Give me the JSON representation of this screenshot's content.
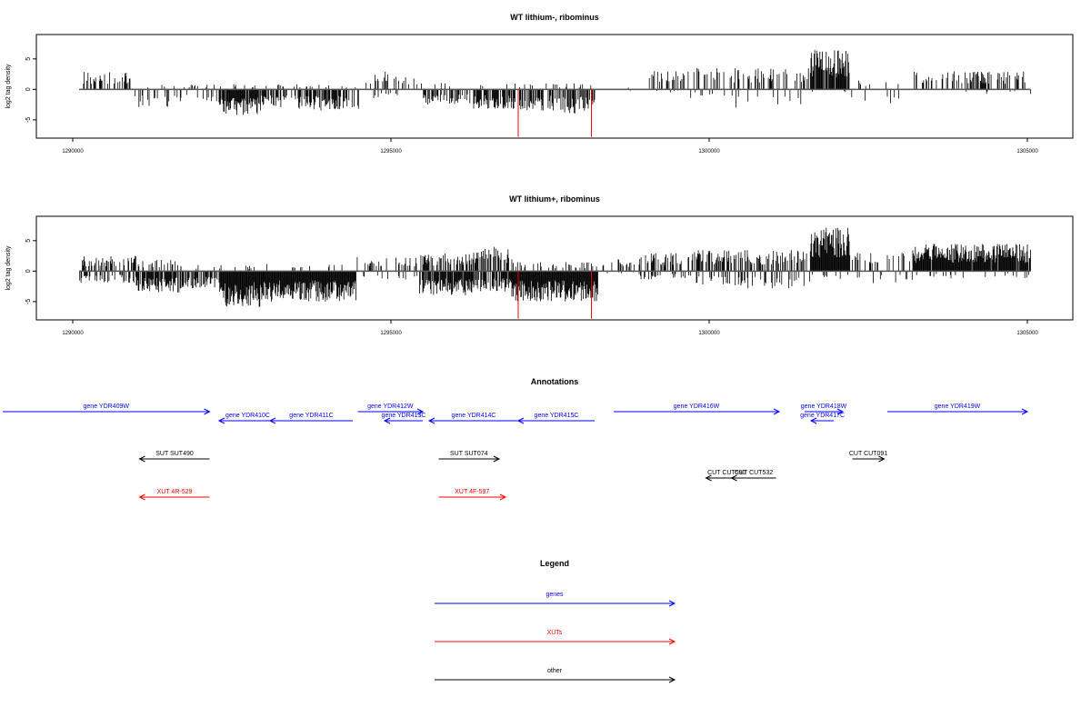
{
  "colors": {
    "gene": "#0000ff",
    "xut": "#ff0000",
    "other": "#000000",
    "signal": "#000000",
    "highlight": "#ff0000"
  },
  "chart_data": [
    {
      "type": "bar",
      "title": "WT lithium-, ribominus",
      "ylabel": "log2 tag density",
      "xlim": [
        1290000,
        1305000
      ],
      "ylim": [
        -8,
        9
      ],
      "x_ticks": [
        1290000,
        1295000,
        1300000,
        1305000
      ],
      "x_tick_labels": [
        "1290000",
        "1295000",
        "1300000",
        "1305000"
      ],
      "y_ticks": [
        -5,
        0,
        5
      ],
      "y_tick_labels": [
        "-5",
        "0",
        "5"
      ],
      "segments": [
        {
          "x0": 1290100,
          "x1": 1290900,
          "pos": 3.0,
          "neg": 0,
          "p": 0.35,
          "pn": 0
        },
        {
          "x0": 1290900,
          "x1": 1291700,
          "pos": 1.0,
          "neg": 3.0,
          "p": 0.12,
          "pn": 0.2
        },
        {
          "x0": 1291700,
          "x1": 1292300,
          "pos": 0.8,
          "neg": 2.5,
          "p": 0.1,
          "pn": 0.2
        },
        {
          "x0": 1292300,
          "x1": 1292950,
          "pos": 1.0,
          "neg": 4.2,
          "p": 0.1,
          "pn": 0.9
        },
        {
          "x0": 1292950,
          "x1": 1293600,
          "pos": 1.0,
          "neg": 3.2,
          "p": 0.1,
          "pn": 0.6
        },
        {
          "x0": 1293600,
          "x1": 1294300,
          "pos": 0.8,
          "neg": 3.5,
          "p": 0.1,
          "pn": 0.7
        },
        {
          "x0": 1294300,
          "x1": 1294500,
          "pos": 0.5,
          "neg": 3.5,
          "p": 0.05,
          "pn": 0.3
        },
        {
          "x0": 1294500,
          "x1": 1295100,
          "pos": 3.0,
          "neg": 1.5,
          "p": 0.3,
          "pn": 0.1
        },
        {
          "x0": 1295100,
          "x1": 1295500,
          "pos": 2.0,
          "neg": 1.5,
          "p": 0.15,
          "pn": 0.1
        },
        {
          "x0": 1295500,
          "x1": 1296300,
          "pos": 1.2,
          "neg": 2.5,
          "p": 0.1,
          "pn": 0.5
        },
        {
          "x0": 1296300,
          "x1": 1296900,
          "pos": 1.0,
          "neg": 3.2,
          "p": 0.1,
          "pn": 0.7
        },
        {
          "x0": 1296900,
          "x1": 1297700,
          "pos": 1.0,
          "neg": 3.5,
          "p": 0.1,
          "pn": 0.6
        },
        {
          "x0": 1297700,
          "x1": 1298200,
          "pos": 1.0,
          "neg": 4.0,
          "p": 0.1,
          "pn": 0.7
        },
        {
          "x0": 1298200,
          "x1": 1299000,
          "pos": 0.3,
          "neg": 0.3,
          "p": 0.02,
          "pn": 0.02
        },
        {
          "x0": 1299000,
          "x1": 1299600,
          "pos": 3.0,
          "neg": 0.5,
          "p": 0.35,
          "pn": 0.05
        },
        {
          "x0": 1299600,
          "x1": 1300400,
          "pos": 3.5,
          "neg": 1.5,
          "p": 0.3,
          "pn": 0.1
        },
        {
          "x0": 1300400,
          "x1": 1301600,
          "pos": 3.5,
          "neg": 3.0,
          "p": 0.25,
          "pn": 0.08
        },
        {
          "x0": 1301600,
          "x1": 1302200,
          "pos": 6.5,
          "neg": 0.5,
          "p": 0.95,
          "pn": 0.02
        },
        {
          "x0": 1302200,
          "x1": 1303200,
          "pos": 1.5,
          "neg": 2.5,
          "p": 0.05,
          "pn": 0.05
        },
        {
          "x0": 1303200,
          "x1": 1305050,
          "pos": 3.0,
          "neg": 0.8,
          "p": 0.35,
          "pn": 0.03
        }
      ],
      "highlights": [
        {
          "x": 1297000,
          "y": -7.8
        },
        {
          "x": 1298150,
          "y": -7.8
        }
      ]
    },
    {
      "type": "bar",
      "title": "WT lithium+, ribominus",
      "ylabel": "log2 tag density",
      "xlim": [
        1290000,
        1305000
      ],
      "ylim": [
        -8,
        9
      ],
      "x_ticks": [
        1290000,
        1295000,
        1300000,
        1305000
      ],
      "x_tick_labels": [
        "1290000",
        "1295000",
        "1300000",
        "1305000"
      ],
      "y_ticks": [
        -5,
        0,
        5
      ],
      "y_tick_labels": [
        "-5",
        "0",
        "5"
      ],
      "segments": [
        {
          "x0": 1290100,
          "x1": 1291000,
          "pos": 2.5,
          "neg": 2.0,
          "p": 0.4,
          "pn": 0.3
        },
        {
          "x0": 1291000,
          "x1": 1291700,
          "pos": 2.0,
          "neg": 3.5,
          "p": 0.3,
          "pn": 0.8
        },
        {
          "x0": 1291700,
          "x1": 1292300,
          "pos": 1.0,
          "neg": 3.0,
          "p": 0.1,
          "pn": 0.5
        },
        {
          "x0": 1292300,
          "x1": 1293000,
          "pos": 1.0,
          "neg": 6.0,
          "p": 0.1,
          "pn": 1.0
        },
        {
          "x0": 1293000,
          "x1": 1294450,
          "pos": 1.2,
          "neg": 5.0,
          "p": 0.1,
          "pn": 1.0
        },
        {
          "x0": 1294450,
          "x1": 1295000,
          "pos": 2.5,
          "neg": 1.5,
          "p": 0.3,
          "pn": 0.1
        },
        {
          "x0": 1295000,
          "x1": 1295450,
          "pos": 2.5,
          "neg": 2.0,
          "p": 0.25,
          "pn": 0.1
        },
        {
          "x0": 1295450,
          "x1": 1296300,
          "pos": 3.0,
          "neg": 4.0,
          "p": 0.5,
          "pn": 0.9
        },
        {
          "x0": 1296300,
          "x1": 1296900,
          "pos": 4.0,
          "neg": 3.5,
          "p": 0.6,
          "pn": 0.8
        },
        {
          "x0": 1296900,
          "x1": 1298250,
          "pos": 1.5,
          "neg": 5.0,
          "p": 0.2,
          "pn": 1.0
        },
        {
          "x0": 1298250,
          "x1": 1298900,
          "pos": 2.0,
          "neg": 0.5,
          "p": 0.25,
          "pn": 0.05
        },
        {
          "x0": 1298900,
          "x1": 1299700,
          "pos": 3.0,
          "neg": 1.5,
          "p": 0.45,
          "pn": 0.15
        },
        {
          "x0": 1299700,
          "x1": 1300600,
          "pos": 3.5,
          "neg": 2.5,
          "p": 0.5,
          "pn": 0.25
        },
        {
          "x0": 1300600,
          "x1": 1301600,
          "pos": 3.5,
          "neg": 3.0,
          "p": 0.4,
          "pn": 0.2
        },
        {
          "x0": 1301600,
          "x1": 1302200,
          "pos": 7.5,
          "neg": 1.5,
          "p": 1.0,
          "pn": 0.1
        },
        {
          "x0": 1302200,
          "x1": 1303200,
          "pos": 3.0,
          "neg": 2.0,
          "p": 0.2,
          "pn": 0.1
        },
        {
          "x0": 1303200,
          "x1": 1305050,
          "pos": 4.5,
          "neg": 1.2,
          "p": 0.95,
          "pn": 0.1
        }
      ],
      "highlights": [
        {
          "x": 1297000,
          "y": -7.8
        },
        {
          "x": 1298150,
          "y": -7.8
        }
      ]
    }
  ],
  "annotations": {
    "title": "Annotations",
    "xlim": [
      1290000,
      1305000
    ],
    "features": [
      {
        "label": "gene YDR409W",
        "type": "gene",
        "start": 1288900,
        "end": 1292150,
        "strand": "+",
        "row": 0
      },
      {
        "label": "gene YDR410C",
        "type": "gene",
        "start": 1293200,
        "end": 1292300,
        "strand": "-",
        "row": 1
      },
      {
        "label": "gene YDR411C",
        "type": "gene",
        "start": 1294400,
        "end": 1293100,
        "strand": "-",
        "row": 1
      },
      {
        "label": "gene YDR412W",
        "type": "gene",
        "start": 1294480,
        "end": 1295500,
        "strand": "+",
        "row": 0
      },
      {
        "label": "gene YDR413C",
        "type": "gene",
        "start": 1295500,
        "end": 1294900,
        "strand": "-",
        "row": 1
      },
      {
        "label": "gene YDR414C",
        "type": "gene",
        "start": 1297000,
        "end": 1295600,
        "strand": "-",
        "row": 1
      },
      {
        "label": "gene YDR415C",
        "type": "gene",
        "start": 1298200,
        "end": 1297000,
        "strand": "-",
        "row": 1
      },
      {
        "label": "gene YDR416W",
        "type": "gene",
        "start": 1298500,
        "end": 1301100,
        "strand": "+",
        "row": 0
      },
      {
        "label": "gene YDR418W",
        "type": "gene",
        "start": 1301500,
        "end": 1302100,
        "strand": "+",
        "row": 0
      },
      {
        "label": "gene YDR417C",
        "type": "gene",
        "start": 1301960,
        "end": 1301600,
        "strand": "-",
        "row": 1
      },
      {
        "label": "gene YDR419W",
        "type": "gene",
        "start": 1302800,
        "end": 1305000,
        "strand": "+",
        "row": 0
      },
      {
        "label": "SUT SUT490",
        "type": "other",
        "start": 1292150,
        "end": 1291050,
        "strand": "-",
        "row": 2
      },
      {
        "label": "SUT SUT074",
        "type": "other",
        "start": 1295750,
        "end": 1296700,
        "strand": "+",
        "row": 2
      },
      {
        "label": "CUT CUT590",
        "type": "other",
        "start": 1300600,
        "end": 1299950,
        "strand": "-",
        "row": 3
      },
      {
        "label": "CUT CUT532",
        "type": "other",
        "start": 1301050,
        "end": 1300350,
        "strand": "-",
        "row": 3
      },
      {
        "label": "CUT CUT091",
        "type": "other",
        "start": 1302250,
        "end": 1302750,
        "strand": "+",
        "row": 2
      },
      {
        "label": "XUT 4R-529",
        "type": "xut",
        "start": 1292150,
        "end": 1291050,
        "strand": "-",
        "row": 4
      },
      {
        "label": "XUT 4F-597",
        "type": "xut",
        "start": 1295750,
        "end": 1296800,
        "strand": "+",
        "row": 4
      }
    ]
  },
  "legend": {
    "title": "Legend",
    "items": [
      {
        "label": "genes",
        "type": "gene"
      },
      {
        "label": "XUTs",
        "type": "xut"
      },
      {
        "label": "other",
        "type": "other"
      }
    ]
  }
}
